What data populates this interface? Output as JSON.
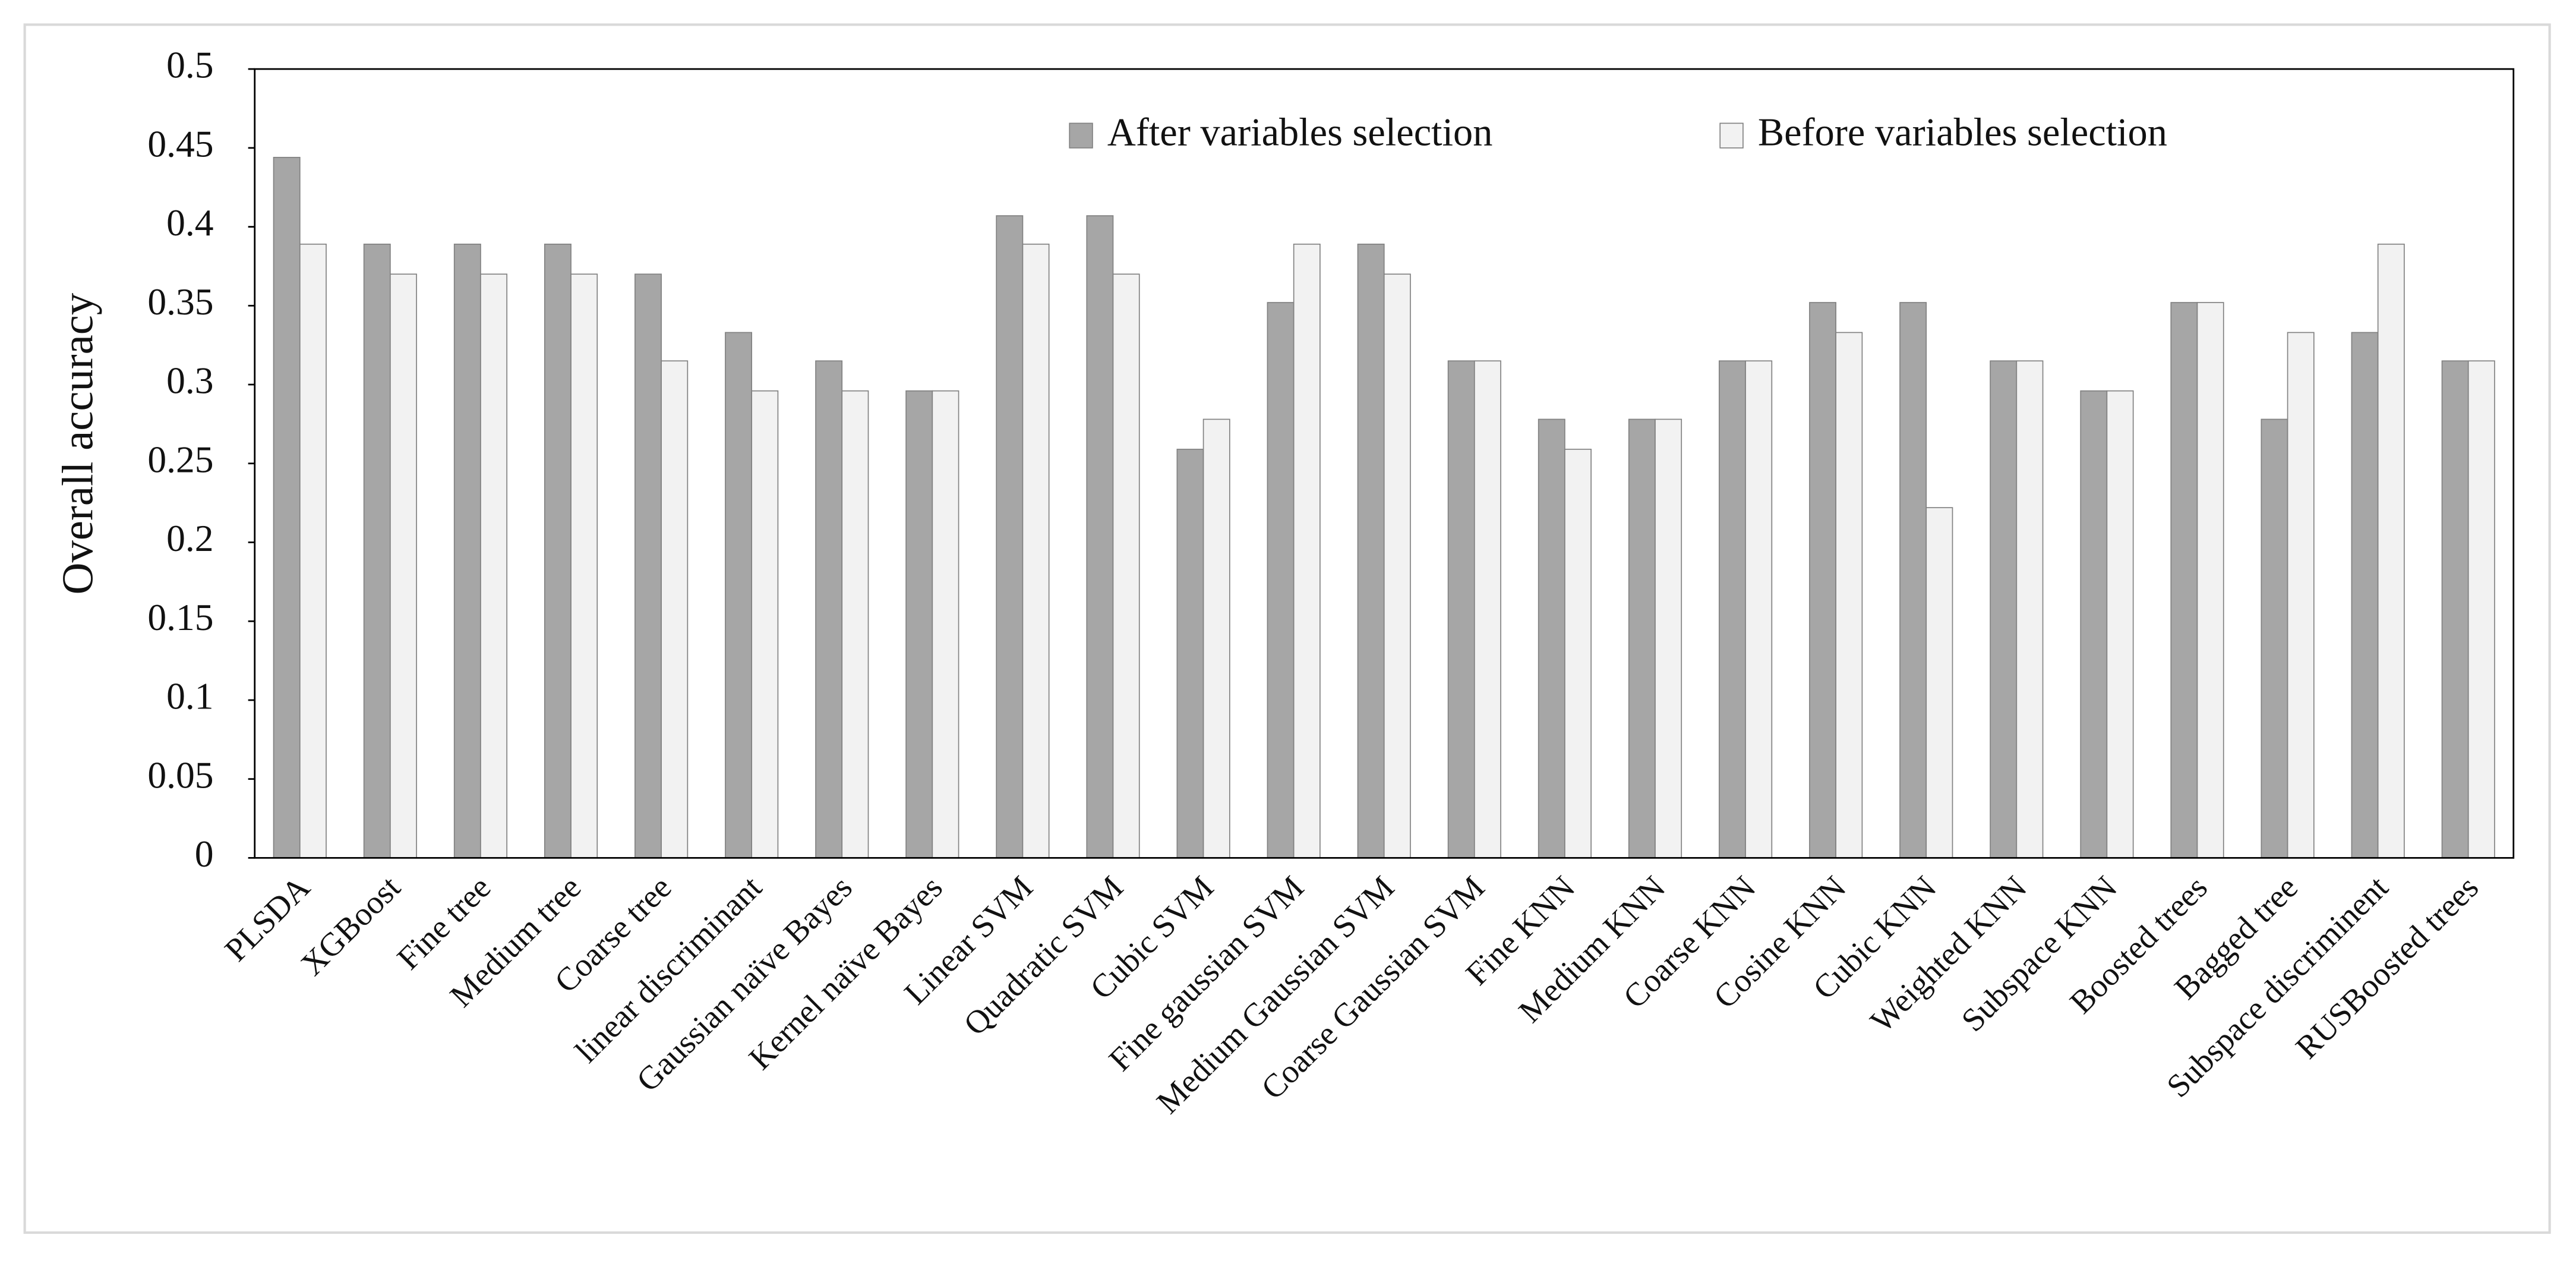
{
  "chart_data": {
    "type": "bar",
    "y_label": "Overall accuracy",
    "categories": [
      "PLSDA",
      "XGBoost",
      "Fine tree",
      "Medium tree",
      "Coarse tree",
      "linear discriminant",
      "Gaussian naïve Bayes",
      "Kernel naïve Bayes",
      "Linear SVM",
      "Quadratic SVM",
      "Cubic SVM",
      "Fine gaussian SVM",
      "Medium Gaussian SVM",
      "Coarse Gaussian SVM",
      "Fine KNN",
      "Medium KNN",
      "Coarse KNN",
      "Cosine KNN",
      "Cubic KNN",
      "Weighted KNN",
      "Subspace KNN",
      "Boosted trees",
      "Bagged tree",
      "Subspace discriminent",
      "RUSBoosted trees"
    ],
    "series": [
      {
        "name": "After variables selection",
        "color": "#a6a6a6",
        "values": [
          0.444,
          0.389,
          0.389,
          0.389,
          0.37,
          0.333,
          0.315,
          0.296,
          0.407,
          0.407,
          0.259,
          0.352,
          0.389,
          0.315,
          0.278,
          0.278,
          0.315,
          0.352,
          0.352,
          0.315,
          0.296,
          0.352,
          0.278,
          0.333,
          0.315
        ]
      },
      {
        "name": "Before variables selection",
        "color": "#f2f2f2",
        "values": [
          0.389,
          0.37,
          0.37,
          0.37,
          0.315,
          0.296,
          0.296,
          0.296,
          0.389,
          0.37,
          0.278,
          0.389,
          0.37,
          0.315,
          0.259,
          0.278,
          0.315,
          0.333,
          0.222,
          0.315,
          0.296,
          0.352,
          0.333,
          0.389,
          0.315
        ]
      }
    ],
    "ylim": [
      0,
      0.5
    ],
    "yticks": [
      0,
      0.05,
      0.1,
      0.15,
      0.2,
      0.25,
      0.3,
      0.35,
      0.4,
      0.45,
      0.5
    ]
  }
}
